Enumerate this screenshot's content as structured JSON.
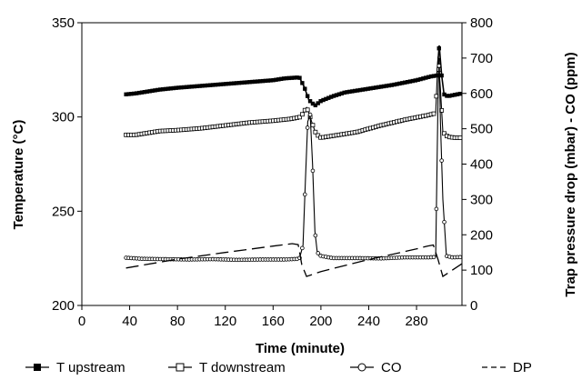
{
  "chart_data": {
    "type": "line",
    "xlabel": "Time (minute)",
    "ylabel": "Temperature (°C)",
    "y2label": "Trap pressure drop (mbar) - CO (ppm)",
    "xlim": [
      0,
      318
    ],
    "ylim": [
      200,
      350
    ],
    "y2lim": [
      0,
      800
    ],
    "x_ticks": [
      0,
      40,
      80,
      120,
      160,
      200,
      240,
      280
    ],
    "y_ticks": [
      200,
      250,
      300,
      350
    ],
    "y2_ticks": [
      0,
      100,
      200,
      300,
      400,
      500,
      600,
      700,
      800
    ],
    "grid": false,
    "legend_position": "bottom",
    "series": [
      {
        "name": "T upstream",
        "axis": "left",
        "marker": "filled-square",
        "x": [
          37,
          45,
          55,
          65,
          80,
          100,
          120,
          140,
          160,
          170,
          182,
          186,
          190,
          195,
          200,
          210,
          220,
          240,
          260,
          280,
          292,
          297,
          299,
          301,
          303,
          306,
          310,
          318
        ],
        "y": [
          312,
          312.5,
          313.5,
          314.5,
          315.5,
          316.5,
          317.5,
          318.5,
          319.5,
          320.5,
          321,
          316,
          309,
          306,
          308.5,
          311,
          313,
          315,
          317,
          319.5,
          321.5,
          322,
          338,
          322,
          312,
          311,
          311.5,
          312.5
        ]
      },
      {
        "name": "T downstream",
        "axis": "left",
        "marker": "open-square",
        "x": [
          37,
          45,
          55,
          65,
          80,
          100,
          120,
          140,
          160,
          175,
          183,
          186,
          188,
          190,
          193,
          196,
          200,
          210,
          230,
          250,
          270,
          290,
          296,
          298,
          300,
          302,
          306,
          312,
          318
        ],
        "y": [
          290.5,
          290.5,
          291.5,
          292.5,
          293,
          294,
          295.5,
          297,
          298,
          299,
          300,
          303,
          305,
          302,
          296,
          291,
          289,
          290,
          292,
          295.5,
          298.5,
          301,
          302,
          332,
          315,
          292,
          289.5,
          289,
          289
        ]
      },
      {
        "name": "CO",
        "axis": "right",
        "marker": "open-circle",
        "x": [
          37,
          50,
          70,
          90,
          110,
          130,
          150,
          170,
          182,
          185,
          187,
          189,
          191,
          193,
          195,
          197,
          200,
          210,
          230,
          250,
          270,
          290,
          296,
          298,
          299,
          300,
          302,
          305,
          310,
          318
        ],
        "y": [
          135,
          132,
          131,
          130,
          131,
          129,
          130,
          130,
          132,
          170,
          350,
          520,
          540,
          400,
          210,
          150,
          140,
          134,
          134,
          133,
          136,
          136,
          137,
          590,
          700,
          520,
          300,
          140,
          136,
          137
        ]
      },
      {
        "name": "DP",
        "axis": "right",
        "marker": "none",
        "x": [
          37,
          80,
          120,
          160,
          176,
          181,
          184,
          188,
          200,
          240,
          280,
          289,
          294,
          298,
          302,
          310,
          318
        ],
        "y": [
          106,
          131,
          150,
          168,
          175,
          172,
          115,
          82,
          96,
          130,
          160,
          168,
          171,
          130,
          82,
          100,
          118
        ]
      }
    ]
  }
}
